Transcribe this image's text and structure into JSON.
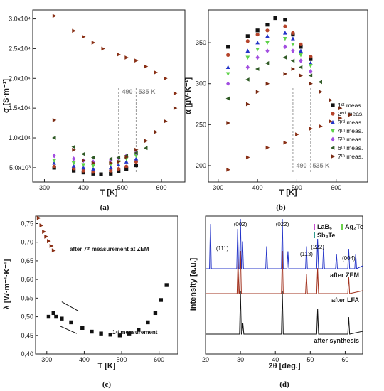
{
  "chart_data": [
    {
      "type": "scatter",
      "panel": "(a)",
      "xlabel": "T [K]",
      "ylabel": "σ [S·m⁻¹]",
      "xlim": [
        270,
        660
      ],
      "ylim": [
        2600,
        31500
      ],
      "xticks": [
        300,
        400,
        500,
        600
      ],
      "yticks": [
        5000,
        10000,
        15000,
        20000,
        25000,
        30000
      ],
      "ytick_labels": [
        "5.0x10³",
        "1.0x10⁴",
        "1.5x10⁴",
        "2.0x10⁴",
        "2.5x10⁴",
        "3.0x10⁴"
      ],
      "annotation": "490 - 535 K",
      "vlines": [
        490,
        535
      ],
      "series": [
        {
          "color": "#111111",
          "marker": "square",
          "x": [
            325,
            375,
            400,
            425,
            445,
            470,
            490,
            510,
            535
          ],
          "y": [
            5000,
            4500,
            4200,
            4000,
            3900,
            4000,
            4400,
            4800,
            5400
          ]
        },
        {
          "color": "#b5432a",
          "marker": "circle",
          "x": [
            325,
            375,
            400,
            425,
            470,
            490,
            510,
            535
          ],
          "y": [
            5200,
            4900,
            4500,
            4300,
            4500,
            4800,
            5200,
            6000
          ]
        },
        {
          "color": "#2434c8",
          "marker": "triangle",
          "x": [
            325,
            375,
            400,
            425,
            470,
            490,
            510,
            535
          ],
          "y": [
            5800,
            5300,
            5000,
            4800,
            5000,
            5500,
            6000,
            6500
          ]
        },
        {
          "color": "#5fd24a",
          "marker": "tri-down",
          "x": [
            325,
            375,
            400,
            425,
            470,
            490,
            510,
            535
          ],
          "y": [
            6200,
            5800,
            5500,
            5300,
            5600,
            6000,
            6500,
            7000
          ]
        },
        {
          "color": "#a24ee0",
          "marker": "diamond",
          "x": [
            325,
            375,
            400,
            425,
            470,
            490,
            510,
            535
          ],
          "y": [
            7000,
            6500,
            6200,
            6000,
            6300,
            6600,
            7000,
            7500
          ]
        },
        {
          "color": "#2f5a25",
          "marker": "tri-left",
          "x": [
            325,
            375,
            400,
            425,
            470,
            490,
            510,
            535,
            560
          ],
          "y": [
            10000,
            8500,
            7300,
            6700,
            6500,
            6700,
            7000,
            7500,
            8300
          ]
        },
        {
          "color": "#7a2a12",
          "marker": "tri-right",
          "x": [
            325,
            375,
            400,
            425,
            470,
            490,
            510,
            535,
            560,
            585,
            610,
            635
          ],
          "y": [
            13000,
            8000,
            6200,
            5800,
            5800,
            6000,
            6800,
            8000,
            9500,
            11000,
            12800,
            15000
          ]
        },
        {
          "color": "#8a3016",
          "marker": "tri-right",
          "x": [
            325,
            375,
            400,
            425,
            450,
            490,
            510,
            535,
            560,
            585,
            610,
            635
          ],
          "y": [
            30500,
            28000,
            27000,
            26000,
            25000,
            24000,
            23500,
            23000,
            22000,
            21000,
            20000,
            17500
          ]
        }
      ]
    },
    {
      "type": "scatter",
      "panel": "(b)",
      "xlabel": "T [K]",
      "ylabel": "α [μV·K⁻¹]",
      "xlim": [
        275,
        680
      ],
      "ylim": [
        180,
        390
      ],
      "xticks": [
        300,
        400,
        500,
        600
      ],
      "yticks": [
        200,
        250,
        300,
        350
      ],
      "annotation": "490 - 535 K",
      "vlines": [
        490,
        535
      ],
      "legend_position": "right",
      "legend": [
        "1ˢᵗ meas.",
        "2ⁿᵈ meas.",
        "3ʳᵈ meas.",
        "4ᵗʰ meas.",
        "5ᵗʰ meas.",
        "6ᵗʰ meas.",
        "7ᵗʰ meas."
      ],
      "series": [
        {
          "name": "1ˢᵗ meas.",
          "color": "#111111",
          "marker": "square",
          "x": [
            325,
            375,
            400,
            425,
            445,
            470,
            490,
            510,
            535
          ],
          "y": [
            345,
            358,
            365,
            372,
            380,
            378,
            360,
            345,
            330
          ]
        },
        {
          "name": "2ⁿᵈ meas.",
          "color": "#b5432a",
          "marker": "circle",
          "x": [
            325,
            375,
            400,
            425,
            470,
            490,
            510,
            535
          ],
          "y": [
            335,
            352,
            360,
            365,
            370,
            362,
            348,
            333
          ]
        },
        {
          "name": "3ʳᵈ meas.",
          "color": "#2434c8",
          "marker": "triangle",
          "x": [
            325,
            375,
            400,
            425,
            470,
            490,
            510,
            535
          ],
          "y": [
            320,
            340,
            350,
            358,
            362,
            355,
            340,
            325
          ]
        },
        {
          "name": "4ᵗʰ meas.",
          "color": "#5fd24a",
          "marker": "tri-down",
          "x": [
            325,
            375,
            400,
            425,
            470,
            490,
            510,
            535
          ],
          "y": [
            312,
            332,
            342,
            350,
            355,
            348,
            335,
            322
          ]
        },
        {
          "name": "5ᵗʰ meas.",
          "color": "#a24ee0",
          "marker": "diamond",
          "x": [
            325,
            375,
            400,
            425,
            470,
            490,
            510,
            535
          ],
          "y": [
            300,
            320,
            332,
            340,
            345,
            340,
            328,
            315
          ]
        },
        {
          "name": "6ᵗʰ meas.",
          "color": "#2f5a25",
          "marker": "tri-left",
          "x": [
            325,
            375,
            400,
            425,
            470,
            490,
            510,
            535,
            560
          ],
          "y": [
            282,
            305,
            318,
            325,
            332,
            328,
            320,
            310,
            302
          ]
        },
        {
          "name": "7ᵗʰ meas.",
          "color": "#7a2a12",
          "marker": "tri-right",
          "x": [
            325,
            375,
            400,
            425,
            470,
            490,
            510,
            535,
            560,
            585,
            610,
            635
          ],
          "y": [
            252,
            275,
            290,
            300,
            312,
            318,
            310,
            300,
            290,
            280,
            270,
            262
          ]
        },
        {
          "name": "7ᵗʰ meas.",
          "color": "#8a3016",
          "marker": "tri-right",
          "x": [
            325,
            375,
            425,
            470,
            500,
            535,
            560,
            585,
            610
          ],
          "y": [
            195,
            210,
            222,
            228,
            238,
            245,
            248,
            254,
            258
          ]
        }
      ]
    },
    {
      "type": "scatter",
      "panel": "(c)",
      "xlabel": "T [K]",
      "ylabel": "λ [W·m⁻¹·K⁻¹]",
      "xlim": [
        270,
        650
      ],
      "ylim": [
        0.4,
        0.77
      ],
      "xticks": [
        300,
        400,
        500,
        600
      ],
      "yticks": [
        0.4,
        0.45,
        0.5,
        0.55,
        0.6,
        0.65,
        0.7,
        0.75
      ],
      "annotations": [
        "after 7ᵗʰ measurement at ZEM",
        "1ˢᵗ measurement"
      ],
      "series": [
        {
          "color": "#8a3016",
          "marker": "tri-right",
          "x": [
            278,
            285,
            292,
            298,
            305,
            312,
            318
          ],
          "y": [
            0.765,
            0.745,
            0.728,
            0.715,
            0.703,
            0.69,
            0.678
          ]
        },
        {
          "color": "#111111",
          "marker": "square",
          "x": [
            305,
            318,
            325,
            340,
            365,
            395,
            420,
            445,
            470,
            495,
            520,
            545,
            570,
            590,
            605,
            620
          ],
          "y": [
            0.5,
            0.51,
            0.5,
            0.495,
            0.485,
            0.47,
            0.46,
            0.455,
            0.452,
            0.45,
            0.455,
            0.465,
            0.485,
            0.51,
            0.545,
            0.585
          ]
        }
      ]
    },
    {
      "type": "line",
      "panel": "(d)",
      "xlabel": "2θ [deg.]",
      "ylabel": "Intensity [a.u.]",
      "xlim": [
        20,
        65
      ],
      "xticks": [
        20,
        30,
        40,
        50,
        60
      ],
      "legend": [
        "LaB₆",
        "Ag₂Te",
        "Sb₂Te"
      ],
      "legend_colors": [
        "#c84cd0",
        "#6ad04a",
        "#2f9a8e"
      ],
      "peak_labels": [
        "(002)",
        "(022)",
        "(111)",
        "(113)",
        "(222)",
        "(004)"
      ],
      "series": [
        {
          "name": "after ZEM",
          "color": "#2434c8",
          "peaks": [
            [
              21.4,
              0.9
            ],
            [
              29.2,
              0.8
            ],
            [
              30.0,
              1.0
            ],
            [
              30.6,
              0.55
            ],
            [
              37.5,
              0.45
            ],
            [
              42.0,
              1.0
            ],
            [
              43.6,
              0.35
            ],
            [
              48.9,
              0.45
            ],
            [
              52.1,
              0.6
            ],
            [
              53.8,
              0.45
            ],
            [
              57.5,
              0.3
            ],
            [
              61.0,
              0.4
            ],
            [
              63.0,
              0.3
            ]
          ]
        },
        {
          "name": "after LFA",
          "color": "#a1301c",
          "peaks": [
            [
              29.3,
              0.8
            ],
            [
              30.0,
              1.0
            ],
            [
              42.0,
              1.0
            ],
            [
              48.9,
              0.45
            ],
            [
              52.1,
              0.6
            ],
            [
              61.0,
              0.4
            ]
          ]
        },
        {
          "name": "after synthesis",
          "color": "#111111",
          "peaks": [
            [
              30.0,
              1.0
            ],
            [
              30.7,
              0.25
            ],
            [
              42.0,
              1.0
            ],
            [
              52.1,
              0.6
            ],
            [
              61.0,
              0.4
            ]
          ]
        }
      ]
    }
  ],
  "captions": [
    "(a)",
    "(b)",
    "(c)",
    "(d)"
  ]
}
